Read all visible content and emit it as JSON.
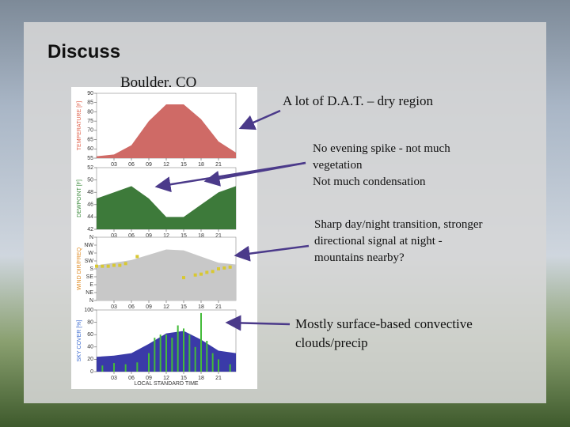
{
  "title": "Discuss",
  "subtitle": "Boulder, CO",
  "annotations": [
    {
      "lines": [
        "A lot of D.A.T. – dry region"
      ]
    },
    {
      "lines": [
        "No evening spike - not much",
        "vegetation",
        "Not much condensation"
      ]
    },
    {
      "lines": [
        "Sharp day/night transition, stronger",
        "directional signal at night -",
        "mountains nearby?"
      ]
    },
    {
      "lines": [
        "Mostly surface-based convective",
        "clouds/precip"
      ]
    }
  ],
  "meteogram": {
    "x_label": "LOCAL STANDARD TIME",
    "xlim": [
      0,
      24
    ],
    "xticks": [
      {
        "value": 3,
        "label": "03"
      },
      {
        "value": 6,
        "label": "06"
      },
      {
        "value": 9,
        "label": "09"
      },
      {
        "value": 12,
        "label": "12"
      },
      {
        "value": 15,
        "label": "15"
      },
      {
        "value": 18,
        "label": "18"
      },
      {
        "value": 21,
        "label": "21"
      }
    ],
    "panels": [
      {
        "ylabel": "TEMPERATURE [F]",
        "ylim": [
          55,
          90
        ],
        "yticks": [
          90,
          85,
          80,
          75,
          70,
          65,
          60,
          55
        ],
        "series": [
          {
            "type": "area",
            "color": "#cf6a66",
            "x": [
              0,
              3,
              6,
              9,
              12,
              15,
              18,
              21,
              24
            ],
            "values": [
              56,
              57,
              62,
              75,
              84,
              84,
              76,
              64,
              58
            ]
          }
        ]
      },
      {
        "ylabel": "DEWPOINT [F]",
        "ylim": [
          42,
          52
        ],
        "yticks": [
          52,
          50,
          48,
          46,
          44,
          42
        ],
        "series": [
          {
            "type": "area",
            "color": "#3d7a3a",
            "x": [
              0,
              3,
              6,
              9,
              12,
              15,
              18,
              21,
              24
            ],
            "values": [
              47,
              48,
              49,
              47,
              44,
              44,
              46,
              48,
              49
            ]
          }
        ]
      },
      {
        "ylabel": "WIND DIR/FREQ",
        "ylim": [
          0,
          360
        ],
        "yticks": [
          {
            "value": 360,
            "label": "N"
          },
          {
            "value": 315,
            "label": "NW"
          },
          {
            "value": 270,
            "label": "W"
          },
          {
            "value": 225,
            "label": "SW"
          },
          {
            "value": 180,
            "label": "S"
          },
          {
            "value": 135,
            "label": "SE"
          },
          {
            "value": 90,
            "label": "E"
          },
          {
            "value": 45,
            "label": "NE"
          },
          {
            "value": 0,
            "label": "N"
          }
        ],
        "series": [
          {
            "type": "area",
            "color": "#c8c8c8",
            "x": [
              0,
              3,
              6,
              9,
              12,
              15,
              18,
              21,
              24
            ],
            "values": [
              200,
              215,
              230,
              260,
              290,
              285,
              250,
              215,
              205
            ]
          },
          {
            "type": "scatter",
            "color": "#d8c832",
            "x": [
              0,
              1,
              2,
              3,
              4,
              5,
              7,
              15,
              17,
              18,
              19,
              20,
              21,
              22,
              23
            ],
            "values": [
              195,
              195,
              195,
              200,
              200,
              210,
              250,
              130,
              145,
              150,
              160,
              165,
              180,
              185,
              190
            ]
          }
        ]
      },
      {
        "ylabel": "SKY COVER [%]",
        "ylim": [
          0,
          100
        ],
        "yticks": [
          100,
          80,
          60,
          40,
          20,
          0
        ],
        "series": [
          {
            "type": "area",
            "color": "#3a3aa8",
            "x": [
              0,
              3,
              6,
              9,
              12,
              15,
              18,
              21,
              24
            ],
            "values": [
              24,
              26,
              30,
              45,
              62,
              66,
              52,
              34,
              30
            ]
          },
          {
            "type": "bar",
            "color": "#44bb3a",
            "x": [
              1,
              3,
              5,
              7,
              9,
              10,
              11,
              12,
              13,
              14,
              15,
              16,
              17,
              18,
              19,
              20,
              21,
              23
            ],
            "values": [
              10,
              14,
              12,
              15,
              30,
              55,
              60,
              60,
              55,
              75,
              70,
              60,
              40,
              95,
              50,
              30,
              20,
              12
            ]
          }
        ]
      }
    ]
  }
}
